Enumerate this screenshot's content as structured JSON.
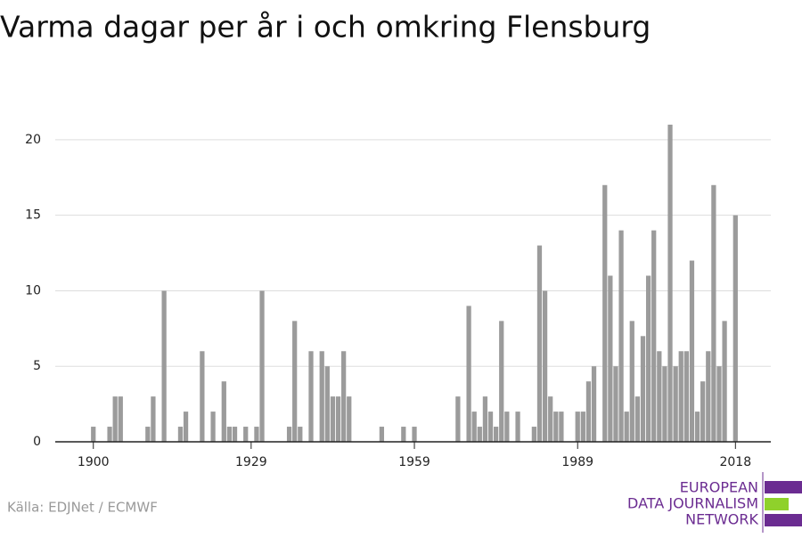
{
  "chart_data": {
    "type": "bar",
    "title": "Varma dagar per år i och omkring Flensburg",
    "source": "Källa: EDJNet / ECMWF",
    "logo": [
      "EUROPEAN",
      "DATA JOURNALISM",
      "NETWORK"
    ],
    "color": "#9b9b9b",
    "x": [
      1900,
      1901,
      1902,
      1903,
      1904,
      1905,
      1906,
      1907,
      1908,
      1909,
      1910,
      1911,
      1912,
      1913,
      1914,
      1915,
      1916,
      1917,
      1918,
      1919,
      1920,
      1921,
      1922,
      1923,
      1924,
      1925,
      1926,
      1927,
      1928,
      1929,
      1930,
      1931,
      1932,
      1933,
      1934,
      1935,
      1936,
      1937,
      1938,
      1939,
      1940,
      1941,
      1942,
      1943,
      1944,
      1945,
      1946,
      1947,
      1948,
      1949,
      1950,
      1951,
      1952,
      1953,
      1954,
      1955,
      1956,
      1957,
      1958,
      1959,
      1960,
      1961,
      1962,
      1963,
      1964,
      1965,
      1966,
      1967,
      1968,
      1969,
      1970,
      1971,
      1972,
      1973,
      1974,
      1975,
      1976,
      1977,
      1978,
      1979,
      1980,
      1981,
      1982,
      1983,
      1984,
      1985,
      1986,
      1987,
      1988,
      1989,
      1990,
      1991,
      1992,
      1993,
      1994,
      1995,
      1996,
      1997,
      1998,
      1999,
      2000,
      2001,
      2002,
      2003,
      2004,
      2005,
      2006,
      2007,
      2008,
      2009,
      2010,
      2011,
      2012,
      2013,
      2014,
      2015,
      2016,
      2017,
      2018
    ],
    "values": [
      1,
      0,
      0,
      1,
      3,
      3,
      0,
      0,
      0,
      0,
      1,
      3,
      0,
      10,
      0,
      0,
      1,
      2,
      0,
      0,
      6,
      0,
      2,
      0,
      4,
      1,
      1,
      0,
      1,
      0,
      1,
      10,
      0,
      0,
      0,
      0,
      1,
      8,
      1,
      0,
      6,
      0,
      6,
      5,
      3,
      3,
      6,
      3,
      0,
      0,
      0,
      0,
      0,
      1,
      0,
      0,
      0,
      1,
      0,
      1,
      0,
      0,
      0,
      0,
      0,
      0,
      0,
      3,
      0,
      9,
      2,
      1,
      3,
      2,
      1,
      8,
      2,
      0,
      2,
      0,
      0,
      1,
      13,
      10,
      3,
      2,
      2,
      0,
      0,
      2,
      2,
      4,
      5,
      0,
      17,
      11,
      5,
      14,
      2,
      8,
      3,
      7,
      11,
      14,
      6,
      5,
      21,
      5,
      6,
      6,
      12,
      2,
      4,
      6,
      17,
      5,
      8,
      0,
      15
    ],
    "xlim": [
      1893,
      2024.5
    ],
    "xticks": [
      1900,
      1929,
      1959,
      1989,
      2018
    ],
    "ylim": [
      0,
      22
    ],
    "yticks": [
      0,
      5,
      10,
      15,
      20
    ],
    "grid": true
  }
}
